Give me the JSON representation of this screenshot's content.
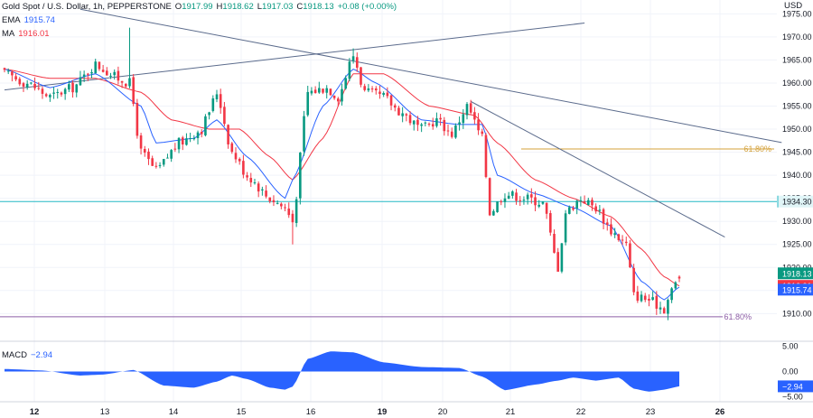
{
  "header": {
    "symbol": "Gold Spot / U.S. Dollar, 1h, PEPPERSTONE",
    "o_label": "O",
    "o_value": "1917.99",
    "h_label": "H",
    "h_value": "1918.62",
    "l_label": "L",
    "l_value": "1917.03",
    "c_label": "C",
    "c_value": "1918.13",
    "change": "+0.08 (+0.00%)",
    "ema_label": "EMA",
    "ema_value": "1915.74",
    "ma_label": "MA",
    "ma_value": "1916.01"
  },
  "currency": "USD",
  "macd": {
    "label": "MACD",
    "value": "−2.94"
  },
  "colors": {
    "up": "#089981",
    "down": "#f23645",
    "ema": "#2962ff",
    "ma": "#f23645",
    "trendline": "#5b6b8c",
    "fib_upper": "#d4a13a",
    "fib_lower": "#8e5fa6",
    "hline": "#26b8c5",
    "macd_fill": "#2962ff"
  },
  "chart_data": [
    {
      "type": "candlestick",
      "symbol": "Gold Spot / U.S. Dollar",
      "timeframe": "1h",
      "xlabel": "",
      "ylabel": "",
      "ylim": [
        1904,
        1978
      ],
      "y_ticks": [
        "1910.00",
        "1915.00",
        "1920.00",
        "1925.00",
        "1930.00",
        "1935.00",
        "1940.00",
        "1945.00",
        "1950.00",
        "1955.00",
        "1960.00",
        "1965.00",
        "1970.00",
        "1975.00"
      ],
      "x_ticks": [
        "12",
        "13",
        "14",
        "15",
        "16",
        "19",
        "20",
        "21",
        "22",
        "23",
        "26"
      ],
      "x_tick_bold": [
        "12",
        "19",
        "26"
      ],
      "close_anchors": [
        [
          0,
          1962
        ],
        [
          6,
          1960
        ],
        [
          12,
          1957
        ],
        [
          18,
          1959
        ],
        [
          24,
          1964
        ],
        [
          30,
          1961
        ],
        [
          33,
          1960
        ],
        [
          36,
          1945
        ],
        [
          40,
          1941
        ],
        [
          46,
          1947
        ],
        [
          52,
          1950
        ],
        [
          54,
          1954
        ],
        [
          56,
          1958
        ],
        [
          60,
          1945
        ],
        [
          64,
          1940
        ],
        [
          70,
          1935
        ],
        [
          74,
          1933
        ],
        [
          76,
          1930
        ],
        [
          80,
          1958
        ],
        [
          85,
          1959
        ],
        [
          88,
          1957
        ],
        [
          92,
          1966
        ],
        [
          95,
          1958
        ],
        [
          100,
          1957
        ],
        [
          104,
          1954
        ],
        [
          110,
          1950
        ],
        [
          114,
          1952
        ],
        [
          118,
          1949
        ],
        [
          122,
          1955
        ],
        [
          126,
          1948
        ],
        [
          128,
          1932
        ],
        [
          132,
          1936
        ],
        [
          138,
          1935
        ],
        [
          142,
          1934
        ],
        [
          146,
          1920
        ],
        [
          148,
          1932
        ],
        [
          152,
          1935
        ],
        [
          156,
          1933
        ],
        [
          160,
          1928
        ],
        [
          164,
          1925
        ],
        [
          166,
          1914
        ],
        [
          170,
          1913
        ],
        [
          172,
          1912
        ],
        [
          174,
          1911
        ],
        [
          176,
          1915
        ],
        [
          178,
          1918
        ]
      ],
      "ema_anchors": [
        [
          0,
          1963
        ],
        [
          12,
          1959
        ],
        [
          24,
          1962
        ],
        [
          36,
          1955
        ],
        [
          40,
          1947
        ],
        [
          50,
          1948
        ],
        [
          56,
          1952
        ],
        [
          64,
          1944
        ],
        [
          74,
          1935
        ],
        [
          76,
          1939
        ],
        [
          84,
          1955
        ],
        [
          92,
          1963
        ],
        [
          98,
          1960
        ],
        [
          110,
          1952
        ],
        [
          120,
          1951
        ],
        [
          126,
          1951
        ],
        [
          130,
          1940
        ],
        [
          140,
          1936
        ],
        [
          150,
          1933
        ],
        [
          160,
          1929
        ],
        [
          168,
          1917
        ],
        [
          174,
          1913
        ],
        [
          178,
          1915.74
        ]
      ],
      "ma_anchors": [
        [
          0,
          1963
        ],
        [
          12,
          1961
        ],
        [
          24,
          1961
        ],
        [
          36,
          1958
        ],
        [
          44,
          1952
        ],
        [
          54,
          1950
        ],
        [
          62,
          1950
        ],
        [
          70,
          1944
        ],
        [
          76,
          1939
        ],
        [
          84,
          1948
        ],
        [
          92,
          1962
        ],
        [
          100,
          1962
        ],
        [
          112,
          1955
        ],
        [
          124,
          1953
        ],
        [
          130,
          1947
        ],
        [
          140,
          1939
        ],
        [
          150,
          1935
        ],
        [
          160,
          1931
        ],
        [
          168,
          1924
        ],
        [
          174,
          1918
        ],
        [
          178,
          1916.01
        ]
      ],
      "horizontal_lines": [
        {
          "price": 1934.3,
          "label": "1934.30"
        },
        {
          "price": 1945.7,
          "label": "61.80%"
        },
        {
          "price": 1909.3,
          "label": "61.80%"
        }
      ],
      "trendlines": [
        {
          "from": [
            0,
            1958.5
          ],
          "to": [
            153,
            1973.0
          ]
        },
        {
          "from": [
            20,
            1976
          ],
          "to": [
            205,
            1947.1
          ]
        },
        {
          "from": [
            123,
            1956
          ],
          "to": [
            190,
            1926.6
          ]
        }
      ],
      "price_labels": [
        {
          "price": 1918.13,
          "text": "1918.13"
        },
        {
          "price": 1916.01,
          "text": "1916.01"
        },
        {
          "price": 1915.74,
          "text": "1915.74"
        }
      ]
    },
    {
      "type": "area",
      "name": "MACD",
      "value": -2.94,
      "ylim": [
        -6,
        6
      ],
      "y_ticks": [
        "5.00",
        "0.00",
        "−5.00"
      ],
      "current_label": "−2.94",
      "anchors": [
        [
          0,
          0.5
        ],
        [
          10,
          0.2
        ],
        [
          20,
          -0.8
        ],
        [
          26,
          -0.6
        ],
        [
          34,
          0.3
        ],
        [
          42,
          -2.8
        ],
        [
          50,
          -3.2
        ],
        [
          56,
          -2.0
        ],
        [
          60,
          -0.8
        ],
        [
          64,
          -1.5
        ],
        [
          70,
          -3.2
        ],
        [
          74,
          -3.6
        ],
        [
          76,
          -3.0
        ],
        [
          80,
          2.5
        ],
        [
          86,
          4.0
        ],
        [
          92,
          3.8
        ],
        [
          100,
          1.8
        ],
        [
          110,
          0.9
        ],
        [
          120,
          0.7
        ],
        [
          126,
          -1.0
        ],
        [
          132,
          -3.7
        ],
        [
          140,
          -2.6
        ],
        [
          146,
          -1.8
        ],
        [
          150,
          -1.2
        ],
        [
          156,
          -1.8
        ],
        [
          162,
          -1.2
        ],
        [
          166,
          -3.4
        ],
        [
          170,
          -4.0
        ],
        [
          174,
          -3.6
        ],
        [
          178,
          -2.94
        ]
      ]
    }
  ]
}
